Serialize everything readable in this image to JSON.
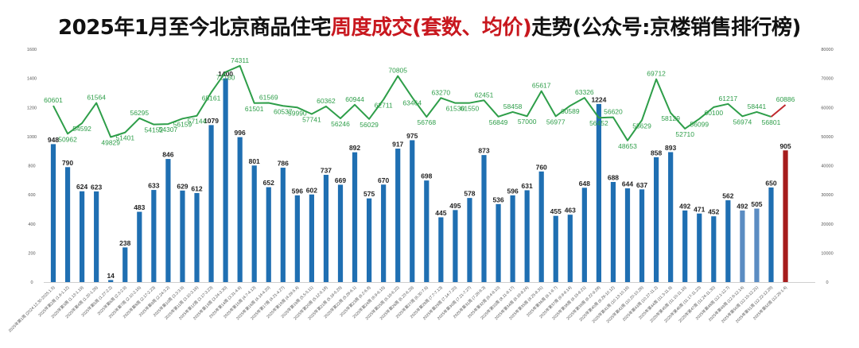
{
  "title": {
    "part1": "2025年1月至今北京商品住宅",
    "highlight": "周度成交(套数、均价)",
    "part2": "走势(公众号:京楼销售排行榜)"
  },
  "colors": {
    "bar": "#1f6fb2",
    "bar_light": "#5b8cc2",
    "bar_latest": "#a61c1c",
    "line": "#2e9e49",
    "line_latest": "#c0282d",
    "highlight_text": "#c8171e"
  },
  "chart_data": {
    "type": "bar",
    "title": "2025年1月至今北京商品住宅周度成交(套数、均价)走势(公众号:京楼销售排行榜)",
    "y_left_ticks": [
      "1600",
      "1400",
      "1200",
      "1000",
      "800",
      "600",
      "400",
      "200",
      "0"
    ],
    "y_right_ticks": [
      "80000",
      "70000",
      "60000",
      "50000",
      "40000",
      "30000",
      "20000",
      "10000",
      "0"
    ],
    "ylim_left": [
      0,
      1600
    ],
    "ylim_right": [
      0,
      80000
    ],
    "series": [
      {
        "type": "bar",
        "axis": "left",
        "values": [
          948,
          790,
          624,
          623,
          14,
          238,
          483,
          633,
          846,
          629,
          612,
          1079,
          1400,
          996,
          801,
          652,
          786,
          596,
          602,
          737,
          669,
          892,
          575,
          670,
          917,
          975,
          698,
          445,
          495,
          578,
          873,
          536,
          596,
          631,
          760,
          455,
          463,
          648,
          1224,
          688,
          644,
          637,
          858,
          893,
          492,
          471,
          452,
          562,
          492,
          505,
          650,
          905
        ]
      },
      {
        "type": "line",
        "axis": "right",
        "values": [
          60601,
          50962,
          54592,
          61564,
          49829,
          51401,
          56295,
          54152,
          54307,
          56159,
          57144,
          65161,
          72160,
          74311,
          61501,
          61569,
          60537,
          59990,
          57741,
          60362,
          56246,
          60944,
          56029,
          62711,
          70805,
          63464,
          56768,
          63270,
          61530,
          61550,
          62451,
          56849,
          58458,
          57000,
          65617,
          56977,
          60589,
          63326,
          56452,
          56620,
          48653,
          55629,
          69712,
          58129,
          52710,
          56099,
          60100,
          61217,
          56974,
          58441,
          56801,
          60886
        ]
      }
    ],
    "categories": [
      "2025年第1周 (2024.12.30-2025.1.5)",
      "2025年第2周 (1.6-1.12)",
      "2025年第3周 (1.13-1.19)",
      "2025年第4周 (1.20-1.26)",
      "2025年第5周 (1.27-2.2)",
      "2025年第6周 (2.3-2.9)",
      "2025年第7周 (2.10-2.16)",
      "2025年第8周 (2.17-2.23)",
      "2025年第9周 (2.24-3.2)",
      "2025年第10周 (3.3-3.9)",
      "2025年第11周 (3.10-3.16)",
      "2025年第12周 (3.17-3.23)",
      "2025年第13周 (3.24-3.30)",
      "2025年第14周 (3.31-4.6)",
      "2025年第15周 (4.7-4.13)",
      "2025年第16周 (4.14-4.20)",
      "2025年第17周 (4.21-4.27)",
      "2025年第18周 (4.28-5.4)",
      "2025年第19周 (5.5-5.11)",
      "2025年第20周 (5.12-5.18)",
      "2025年第21周 (5.19-5.25)",
      "2025年第22周 (5.26-6.1)",
      "2025年第23周 (6.2-6.8)",
      "2025年第24周 (6.9-6.15)",
      "2025年第25周 (6.16-6.22)",
      "2025年第26周 (6.23-6.29)",
      "2025年第27周 (6.30-7.6)",
      "2025年第28周 (7.7-7.13)",
      "2025年第29周 (7.14-7.20)",
      "2025年第30周 (7.21-7.27)",
      "2025年第31周 (7.28-8.3)",
      "2025年第32周 (8.4-8.10)",
      "2025年第33周 (8.11-8.17)",
      "2025年第34周 (8.18-8.24)",
      "2025年第35周 (8.25-8.31)",
      "2025年第36周 (9.1-9.7)",
      "2025年第37周 (9.8-9.14)",
      "2025年第38周 (9.15-9.21)",
      "2025年第39周 (9.22-9.28)",
      "2025年第40周 (9.29-10.12)",
      "2025年第41周 (10.13-10.19)",
      "2025年第42周 (10.20-10.26)",
      "2025年第43周 (10.27-11.2)",
      "2025年第44周 (11.3-11.9)",
      "2025年第45周 (11.10-11.16)",
      "2025年第46周 (11.17-11.23)",
      "2025年第47周 (11.24-11.30)",
      "2025年第48周 (12.1-12.7)",
      "2025年第49周 (12.8-12.14)",
      "2025年第50周 (12.15-12.21)",
      "2025年第51周 (12.22-12.28)",
      "2025年第52周 (12.29-1.4)"
    ],
    "grid": false,
    "legend": "none"
  }
}
